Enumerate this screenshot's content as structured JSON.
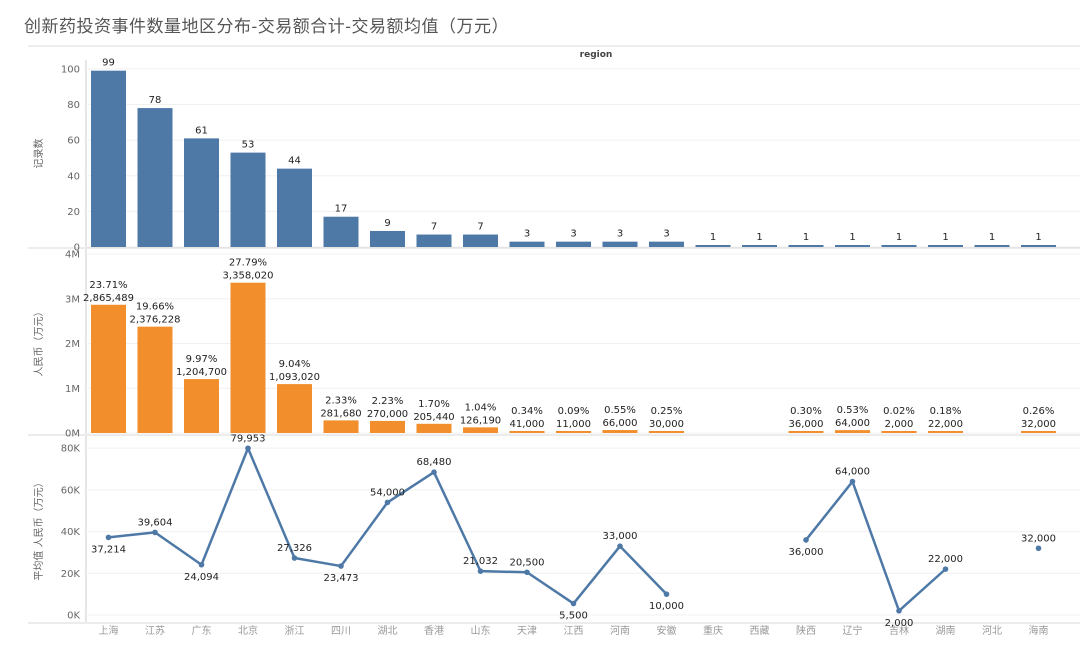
{
  "title": "创新药投资事件数量地区分布-交易额合计-交易额均值（万元）",
  "chart_data": {
    "type": "bar",
    "column_header": "region",
    "categories": [
      "上海",
      "江苏",
      "广东",
      "北京",
      "浙江",
      "四川",
      "湖北",
      "香港",
      "山东",
      "天津",
      "江西",
      "河南",
      "安徽",
      "重庆",
      "西藏",
      "陕西",
      "辽宁",
      "吉林",
      "湖南",
      "河北",
      "海南"
    ],
    "panels": [
      {
        "type": "bar",
        "ylabel": "记录数",
        "color": "#4e79a7",
        "ylim": [
          0,
          105
        ],
        "ticks": [
          0,
          20,
          40,
          60,
          80,
          100
        ],
        "tick_labels": [
          "0",
          "20",
          "40",
          "60",
          "80",
          "100"
        ],
        "values": [
          99,
          78,
          61,
          53,
          44,
          17,
          9,
          7,
          7,
          3,
          3,
          3,
          3,
          1,
          1,
          1,
          1,
          1,
          1,
          1,
          1
        ],
        "labels": [
          "99",
          "78",
          "61",
          "53",
          "44",
          "17",
          "9",
          "7",
          "7",
          "3",
          "3",
          "3",
          "3",
          "1",
          "1",
          "1",
          "1",
          "1",
          "1",
          "1",
          "1"
        ]
      },
      {
        "type": "bar",
        "ylabel": "人民币（万元）",
        "color": "#f28e2b",
        "ylim": [
          0,
          4000000
        ],
        "ticks": [
          0,
          1000000,
          2000000,
          3000000,
          4000000
        ],
        "tick_labels": [
          "0M",
          "1M",
          "2M",
          "3M",
          "4M"
        ],
        "values": [
          2865489,
          2376228,
          1204700,
          3358020,
          1093020,
          281680,
          270000,
          205440,
          126190,
          41000,
          11000,
          66000,
          30000,
          null,
          null,
          36000,
          64000,
          2000,
          22000,
          null,
          32000
        ],
        "labels": [
          "2,865,489",
          "2,376,228",
          "1,204,700",
          "3,358,020",
          "1,093,020",
          "281,680",
          "270,000",
          "205,440",
          "126,190",
          "41,000",
          "11,000",
          "66,000",
          "30,000",
          "",
          "",
          "36,000",
          "64,000",
          "2,000",
          "22,000",
          "",
          "32,000"
        ],
        "pct_labels": [
          "23.71%",
          "19.66%",
          "9.97%",
          "27.79%",
          "9.04%",
          "2.33%",
          "2.23%",
          "1.70%",
          "1.04%",
          "0.34%",
          "0.09%",
          "0.55%",
          "0.25%",
          "",
          "",
          "0.30%",
          "0.53%",
          "0.02%",
          "0.18%",
          "",
          "0.26%"
        ]
      },
      {
        "type": "line",
        "ylabel": "平均值 人民币（万元）",
        "color": "#4e79a7",
        "ylim": [
          0,
          82000
        ],
        "ticks": [
          0,
          20000,
          40000,
          60000,
          80000
        ],
        "tick_labels": [
          "0K",
          "20K",
          "40K",
          "60K",
          "80K"
        ],
        "values": [
          37214,
          39604,
          24094,
          79953,
          27326,
          23473,
          54000,
          68480,
          21032,
          20500,
          5500,
          33000,
          10000,
          null,
          null,
          36000,
          64000,
          2000,
          22000,
          null,
          32000
        ],
        "labels": [
          "37,214",
          "39,604",
          "24,094",
          "79,953",
          "27,326",
          "23,473",
          "54,000",
          "68,480",
          "21,032",
          "20,500",
          "5,500",
          "33,000",
          "10,000",
          "",
          "",
          "36,000",
          "64,000",
          "2,000",
          "22,000",
          "",
          "32,000"
        ]
      }
    ]
  }
}
